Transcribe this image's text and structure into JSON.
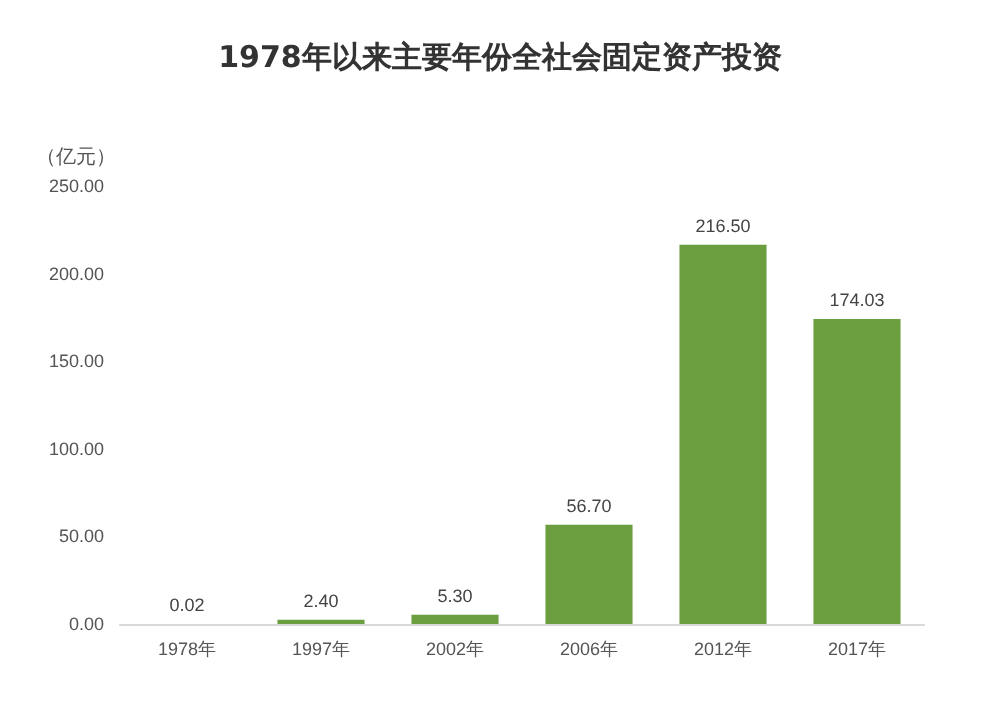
{
  "chart_data": {
    "type": "bar",
    "title": "1978年以来主要年份全社会固定资产投资",
    "ylabel": "（亿元）",
    "categories": [
      "1978年",
      "1997年",
      "2002年",
      "2006年",
      "2012年",
      "2017年"
    ],
    "values": [
      0.02,
      2.4,
      5.3,
      56.7,
      216.5,
      174.03
    ],
    "value_labels": [
      "0.02",
      "2.40",
      "5.30",
      "56.70",
      "216.50",
      "174.03"
    ],
    "color": "#6a9e3f",
    "ylim": [
      0,
      250
    ],
    "yticks": [
      {
        "value": 0,
        "label": "0.00"
      },
      {
        "value": 50,
        "label": "50.00"
      },
      {
        "value": 100,
        "label": "100.00"
      },
      {
        "value": 150,
        "label": "150.00"
      },
      {
        "value": 200,
        "label": "200.00"
      },
      {
        "value": 250,
        "label": "250.00"
      }
    ],
    "grid": false
  }
}
